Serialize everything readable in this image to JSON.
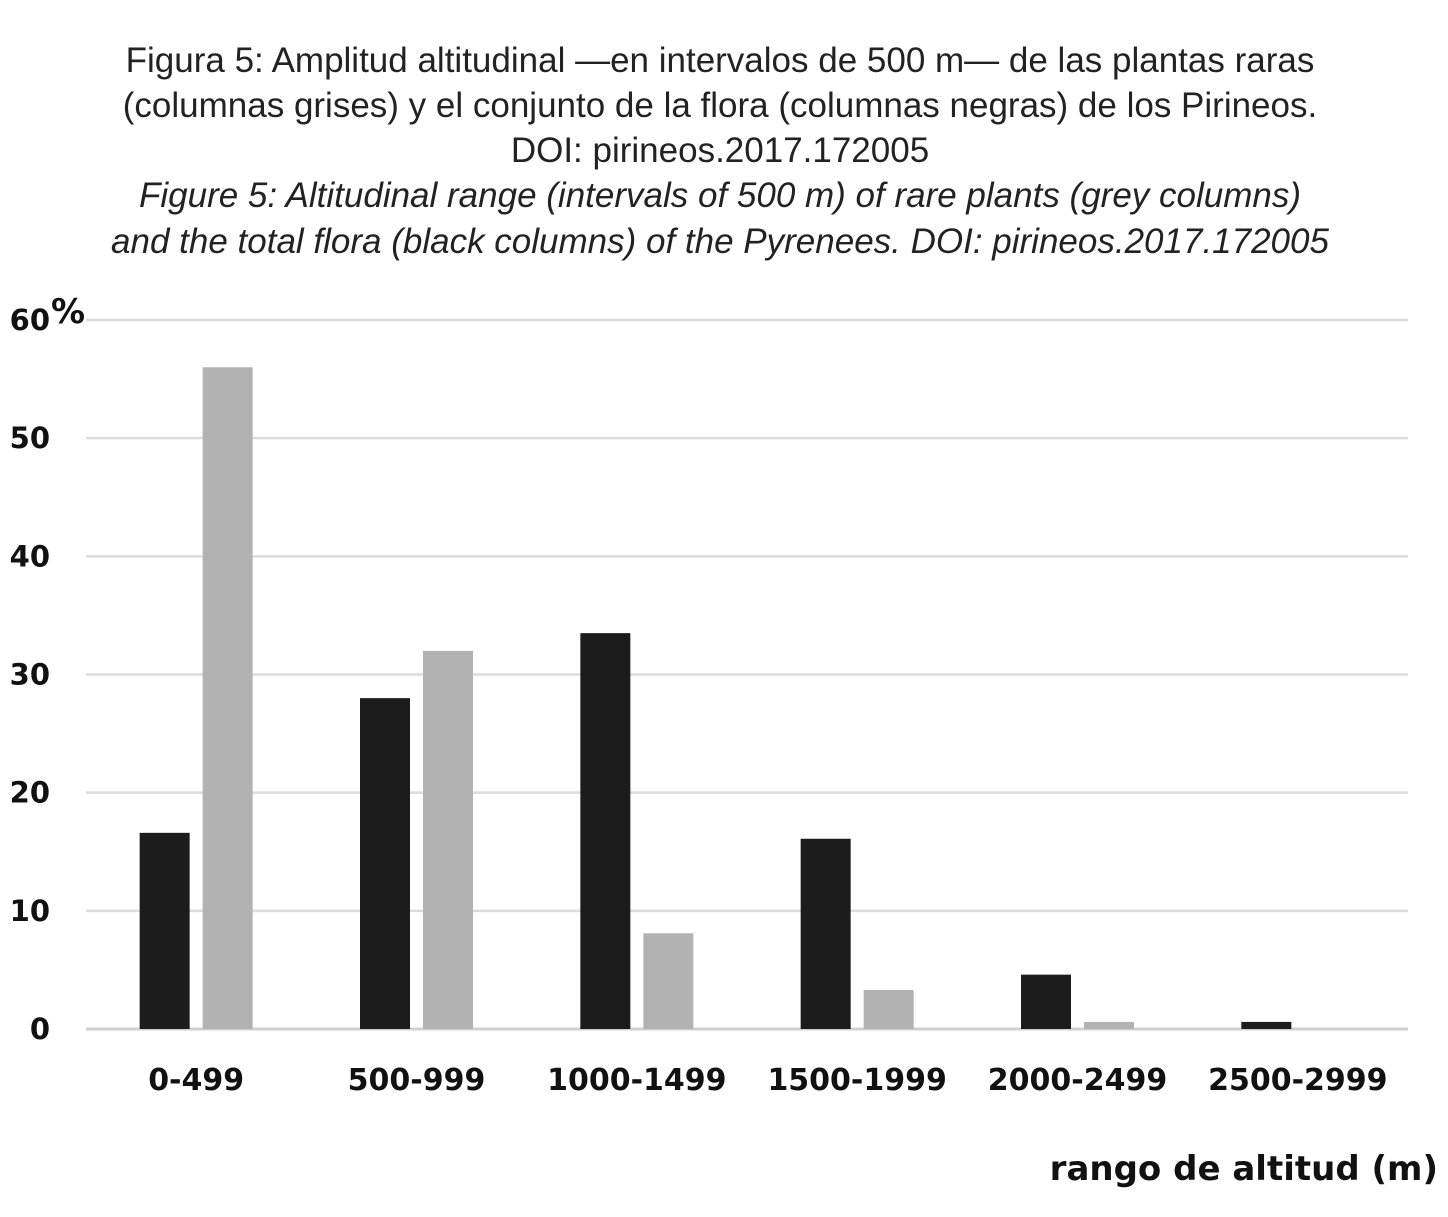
{
  "chart_data": {
    "type": "bar",
    "title_es_lines": [
      "Figura 5: Amplitud altitudinal —en intervalos de 500 m— de las plantas raras",
      "(columnas grises) y el conjunto de la flora (columnas negras) de los Pirineos.",
      "DOI: pirineos.2017.172005"
    ],
    "title_en_lines": [
      "Figure 5: Altitudinal range (intervals of 500 m) of rare plants (grey columns)",
      "and the total flora (black columns) of the Pyrenees. DOI: pirineos.2017.172005"
    ],
    "xlabel": "rango de altitud (m)",
    "ylabel": "%",
    "ylim": [
      0,
      60
    ],
    "yticks": [
      0,
      10,
      20,
      30,
      40,
      50,
      60
    ],
    "grid": true,
    "categories": [
      "0-499",
      "500-999",
      "1000-1499",
      "1500-1999",
      "2000-2499",
      "2500-2999"
    ],
    "series": [
      {
        "values": [
          16.6,
          28.0,
          33.5,
          16.1,
          4.6,
          0.6
        ],
        "color": "#1c1c1c"
      },
      {
        "values": [
          56.0,
          32.0,
          8.1,
          3.3,
          0.6,
          0.0
        ],
        "color": "#b2b2b2"
      }
    ]
  }
}
